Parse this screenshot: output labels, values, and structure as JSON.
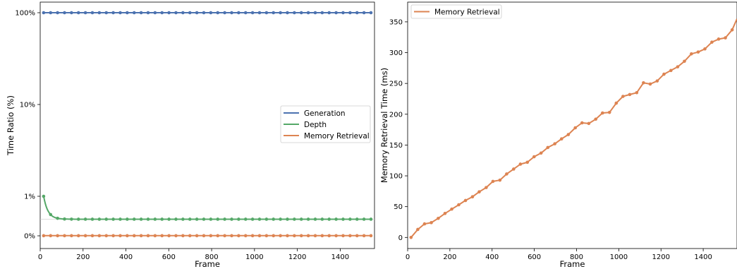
{
  "chart_data": [
    {
      "type": "line",
      "xlabel": "Frame",
      "ylabel": "Time Ratio (%)",
      "xlim": [
        0,
        1560
      ],
      "x_ticks": [
        0,
        200,
        400,
        600,
        800,
        1000,
        1200,
        1400
      ],
      "y_scale": "symlog",
      "y_ticks": [
        {
          "value": 0,
          "label": "0%"
        },
        {
          "value": 1,
          "label": "1%"
        },
        {
          "value": 10,
          "label": "10%"
        },
        {
          "value": 100,
          "label": "100%"
        }
      ],
      "legend_position": "center-right",
      "series": [
        {
          "name": "Generation",
          "color": "#4c72b0",
          "start": 100,
          "settle": 100
        },
        {
          "name": "Depth",
          "color": "#55a868",
          "start": 1.0,
          "settle": 0.42
        },
        {
          "name": "Memory Retrieval",
          "color": "#dd8452",
          "start": 0.003,
          "settle": 0.003
        }
      ],
      "x_start": 16,
      "x_step": 32.5,
      "n_points": 48
    },
    {
      "type": "line",
      "xlabel": "Frame",
      "ylabel": "Memory Retrieval Time (ms)",
      "xlim": [
        0,
        1560
      ],
      "ylim": [
        -18,
        382
      ],
      "x_ticks": [
        0,
        200,
        400,
        600,
        800,
        1000,
        1200,
        1400
      ],
      "y_ticks": [
        0,
        50,
        100,
        150,
        200,
        250,
        300,
        350
      ],
      "legend_position": "upper-left",
      "series": [
        {
          "name": "Memory Retrieval",
          "color": "#dd8452",
          "x": [
            16,
            48,
            80,
            112,
            145,
            177,
            209,
            242,
            274,
            307,
            339,
            372,
            404,
            437,
            469,
            502,
            534,
            567,
            599,
            632,
            664,
            697,
            729,
            761,
            794,
            826,
            858,
            891,
            923,
            956,
            988,
            1020,
            1052,
            1085,
            1117,
            1149,
            1182,
            1214,
            1247,
            1279,
            1311,
            1344,
            1376,
            1408,
            1441,
            1473,
            1505,
            1537,
            1560
          ],
          "y": [
            0,
            13,
            22,
            24,
            31,
            39,
            46,
            53,
            60,
            66,
            74,
            81,
            91,
            93,
            103,
            111,
            119,
            122,
            131,
            137,
            146,
            152,
            160,
            167,
            178,
            186,
            185,
            192,
            202,
            203,
            218,
            229,
            232,
            235,
            251,
            249,
            254,
            265,
            271,
            277,
            286,
            298,
            301,
            306,
            317,
            322,
            324,
            337,
            355
          ]
        }
      ]
    }
  ]
}
